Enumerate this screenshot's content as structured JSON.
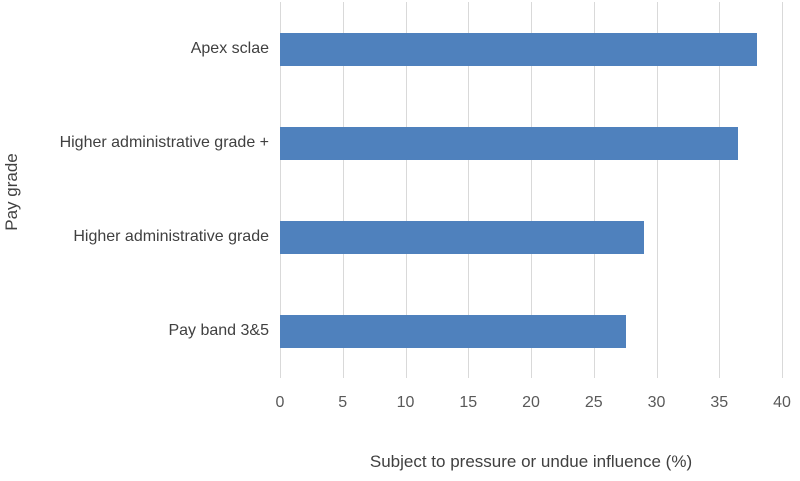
{
  "chart_data": {
    "type": "bar",
    "orientation": "horizontal",
    "title": "",
    "categories": [
      "Apex sclae",
      "Higher administrative grade +",
      "Higher administrative grade",
      "Pay band 3&5"
    ],
    "values": [
      38,
      36.5,
      29,
      27.6
    ],
    "xlabel": "Subject to pressure or undue influence (%)",
    "ylabel": "Pay grade",
    "xlim": [
      0,
      40
    ],
    "xticks": [
      0,
      5,
      10,
      15,
      20,
      25,
      30,
      35,
      40
    ],
    "grid": "vertical-only",
    "legend": "none",
    "bar_color": "#4F81BD",
    "gridline_color": "#D9D9D9",
    "label_color": "#404040",
    "tick_color": "#595959"
  }
}
